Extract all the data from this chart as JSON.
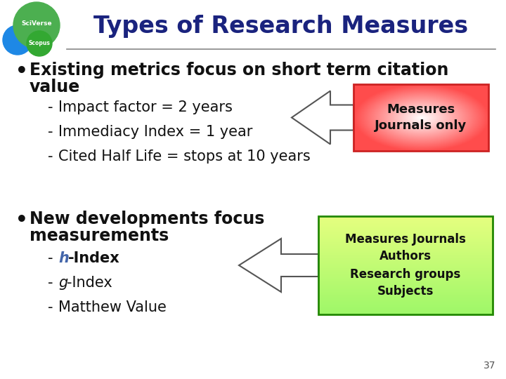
{
  "title": "Types of Research Measures",
  "title_color": "#1a237e",
  "bg_color": "#ffffff",
  "bullet1_line1": "Existing metrics focus on short term citation",
  "bullet1_line2": "value",
  "bullet1_items": [
    "Impact factor = 2 years",
    "Immediacy Index = 1 year",
    "Cited Half Life = stops at 10 years"
  ],
  "bullet2_line1": "New developments focus",
  "bullet2_line2": "measurements",
  "bullet2_items": [
    "h-Index",
    "g-Index",
    "Matthew Value"
  ],
  "box1_text": "Measures\nJournals only",
  "box2_text": "Measures Journals\nAuthors\nResearch groups\nSubjects",
  "page_num": "37",
  "sciverse_color": "#4caf50",
  "scopus_blue": "#1e88e5",
  "scopus_green": "#33a832"
}
